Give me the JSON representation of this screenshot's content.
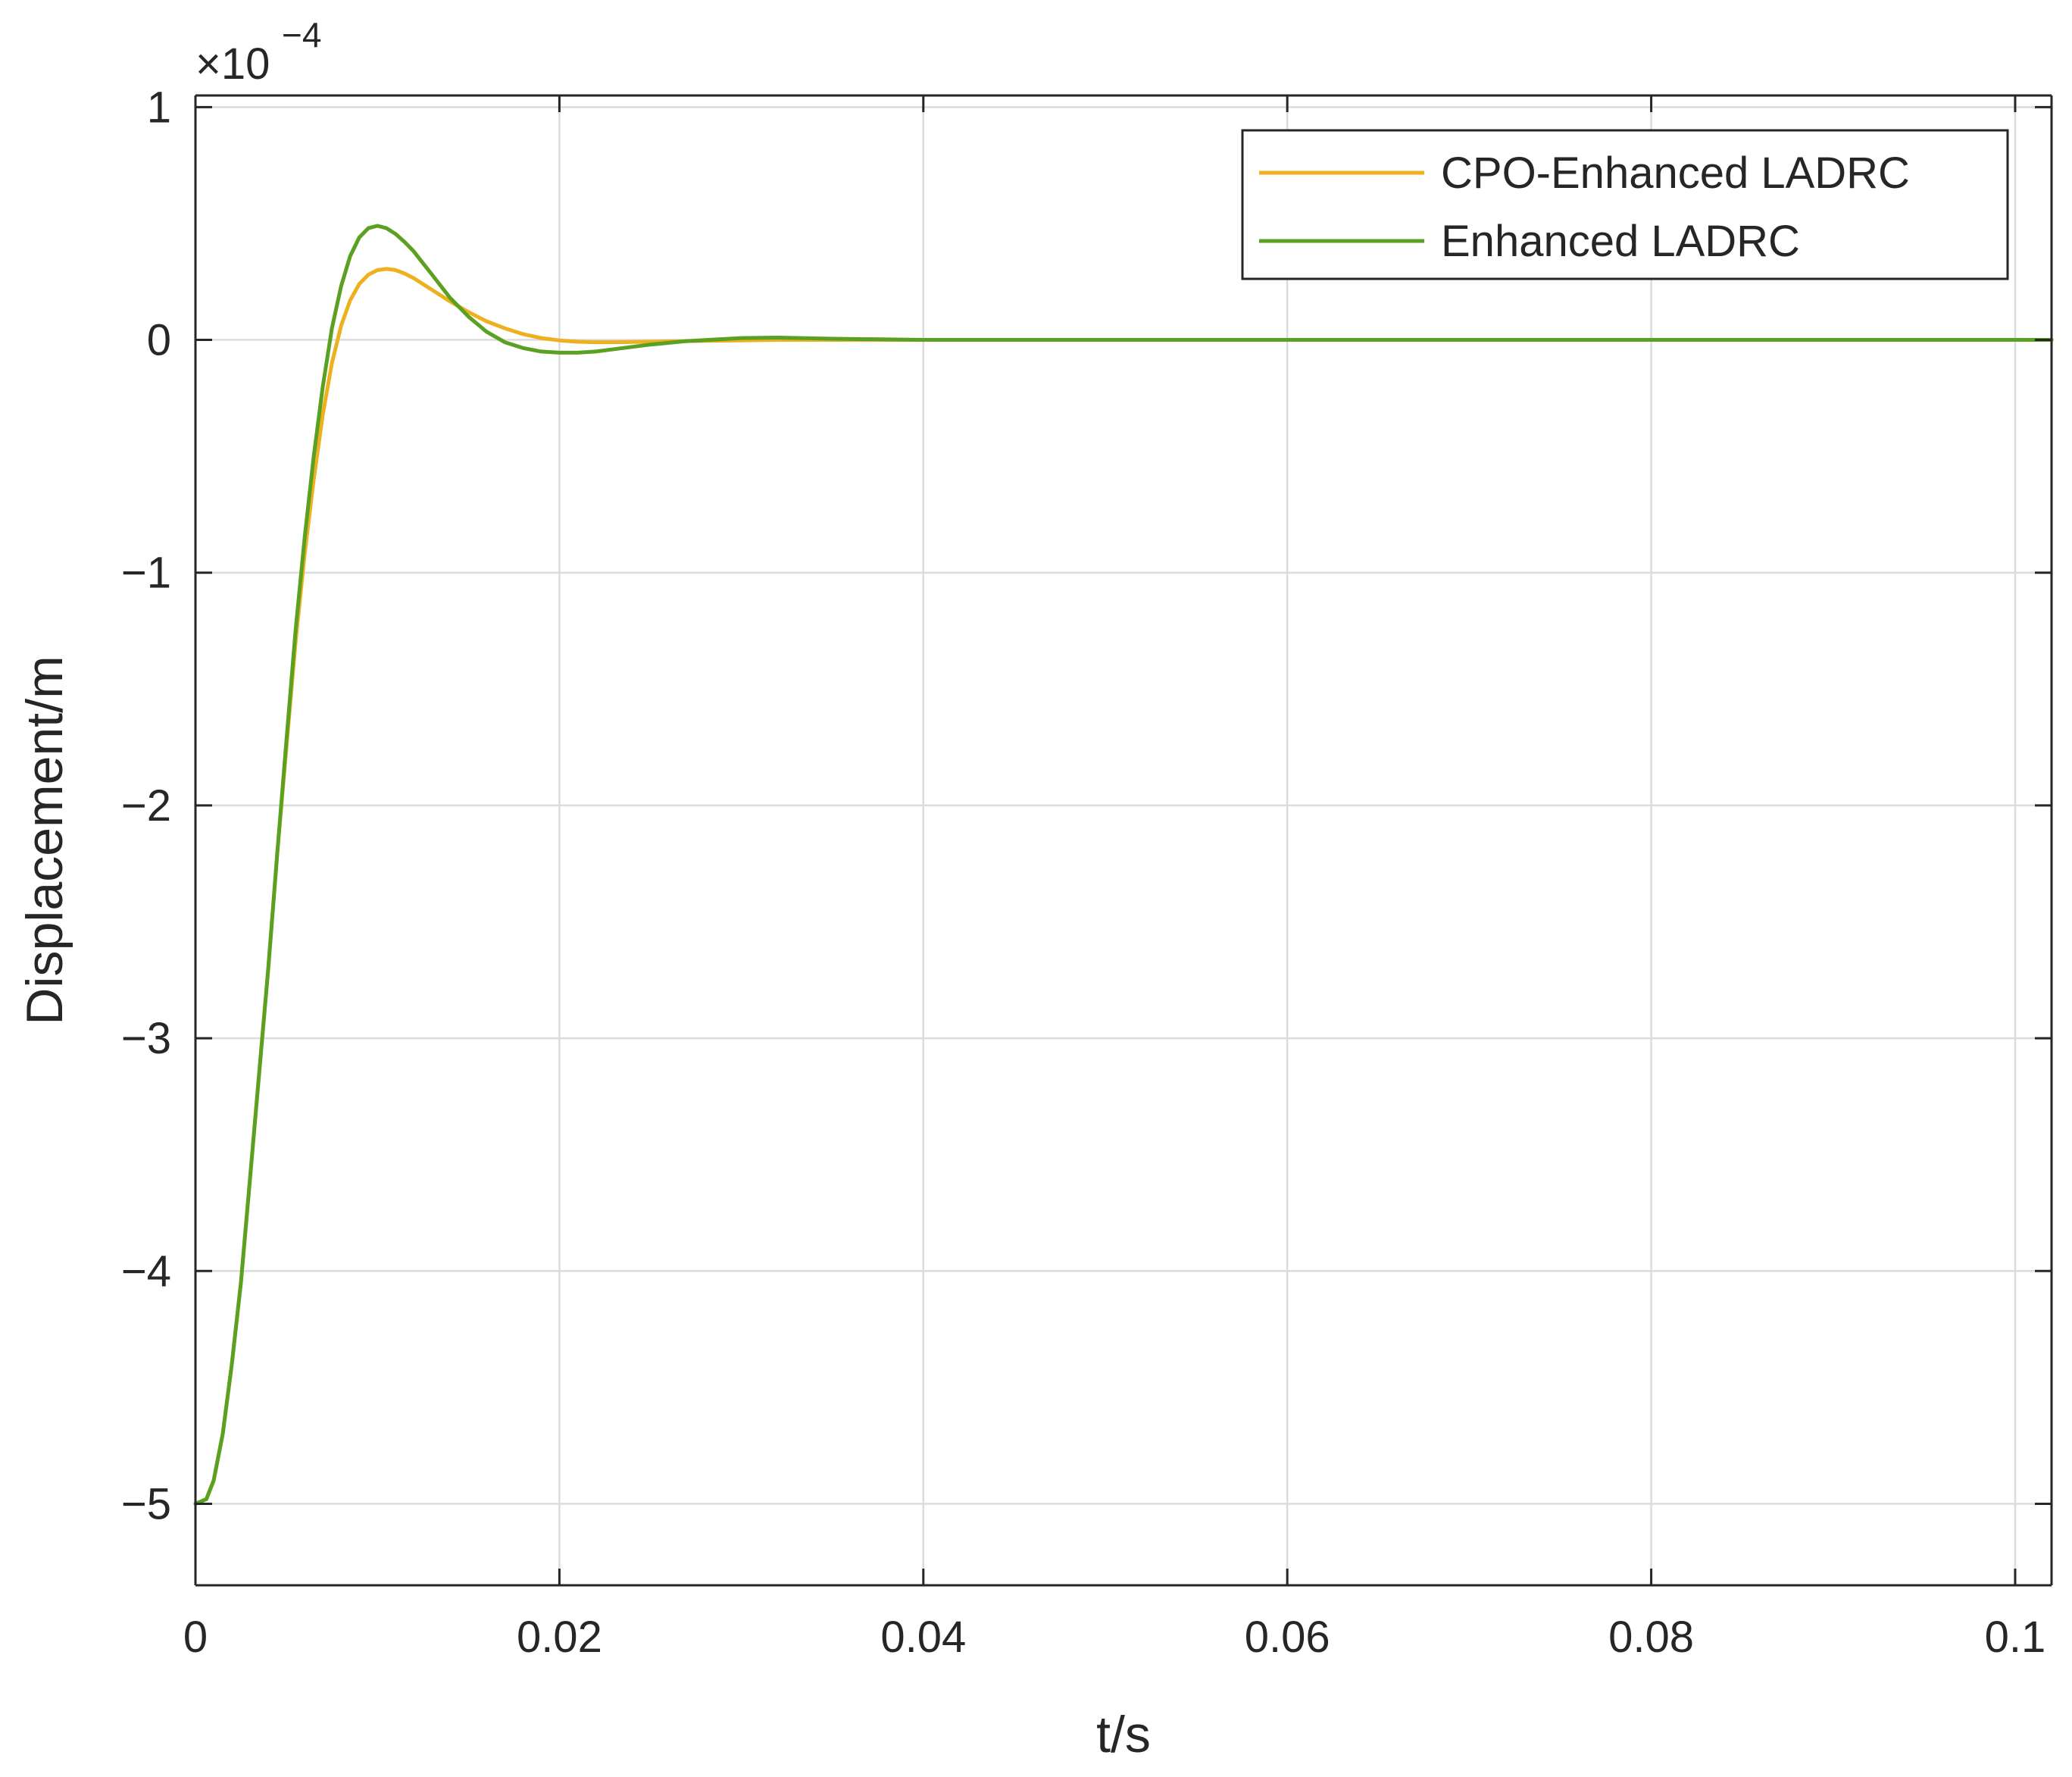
{
  "chart_data": {
    "type": "line",
    "title": "",
    "xlabel": "t/s",
    "ylabel": "Displacement/m",
    "y_exponent_label": "×10",
    "y_exponent_power": "−4",
    "xlim": [
      0,
      0.102
    ],
    "ylim": [
      -5.35,
      1.05
    ],
    "x_ticks": [
      0,
      0.02,
      0.04,
      0.06,
      0.08,
      0.1
    ],
    "x_tick_labels": [
      "0",
      "0.02",
      "0.04",
      "0.06",
      "0.08",
      "0.1"
    ],
    "y_ticks": [
      -5,
      -4,
      -3,
      -2,
      -1,
      0,
      1
    ],
    "y_tick_labels": [
      "−5",
      "−4",
      "−3",
      "−2",
      "−1",
      "0",
      "1"
    ],
    "grid": true,
    "legend_position": "top-right",
    "series": [
      {
        "name": "CPO-Enhanced LADRC",
        "color": "#EDB120",
        "x": [
          0,
          0.0006,
          0.001,
          0.0015,
          0.002,
          0.0025,
          0.003,
          0.0035,
          0.004,
          0.0045,
          0.005,
          0.0055,
          0.006,
          0.0065,
          0.007,
          0.0075,
          0.008,
          0.0085,
          0.009,
          0.0095,
          0.01,
          0.0105,
          0.011,
          0.0115,
          0.012,
          0.0125,
          0.013,
          0.014,
          0.015,
          0.016,
          0.017,
          0.018,
          0.019,
          0.02,
          0.021,
          0.022,
          0.023,
          0.025,
          0.027,
          0.03,
          0.032,
          0.035,
          0.04,
          0.05,
          0.06,
          0.08,
          0.102
        ],
        "values": [
          -5.0,
          -4.98,
          -4.9,
          -4.7,
          -4.4,
          -4.05,
          -3.6,
          -3.15,
          -2.7,
          -2.2,
          -1.75,
          -1.3,
          -0.92,
          -0.6,
          -0.32,
          -0.1,
          0.06,
          0.17,
          0.24,
          0.28,
          0.3,
          0.305,
          0.3,
          0.285,
          0.265,
          0.24,
          0.215,
          0.165,
          0.12,
          0.08,
          0.05,
          0.025,
          0.008,
          -0.002,
          -0.008,
          -0.01,
          -0.01,
          -0.008,
          -0.005,
          -0.002,
          0.0,
          0.0,
          0.0,
          0.0,
          0.0,
          0.0,
          0.0
        ]
      },
      {
        "name": "Enhanced LADRC",
        "color": "#5AA021",
        "x": [
          0,
          0.0006,
          0.001,
          0.0015,
          0.002,
          0.0025,
          0.003,
          0.0035,
          0.004,
          0.0045,
          0.005,
          0.0055,
          0.006,
          0.0065,
          0.007,
          0.0075,
          0.008,
          0.0085,
          0.009,
          0.0095,
          0.01,
          0.0105,
          0.011,
          0.0115,
          0.012,
          0.0125,
          0.013,
          0.014,
          0.015,
          0.016,
          0.017,
          0.018,
          0.019,
          0.02,
          0.021,
          0.022,
          0.023,
          0.025,
          0.027,
          0.03,
          0.032,
          0.035,
          0.04,
          0.05,
          0.06,
          0.08,
          0.102
        ],
        "values": [
          -5.0,
          -4.98,
          -4.9,
          -4.7,
          -4.4,
          -4.05,
          -3.6,
          -3.15,
          -2.7,
          -2.2,
          -1.72,
          -1.25,
          -0.85,
          -0.5,
          -0.2,
          0.05,
          0.23,
          0.36,
          0.44,
          0.48,
          0.49,
          0.48,
          0.455,
          0.42,
          0.38,
          0.33,
          0.28,
          0.18,
          0.1,
          0.035,
          -0.01,
          -0.035,
          -0.05,
          -0.055,
          -0.055,
          -0.05,
          -0.04,
          -0.02,
          -0.005,
          0.008,
          0.01,
          0.005,
          0.0,
          0.0,
          0.0,
          0.0,
          0.0
        ]
      }
    ]
  }
}
